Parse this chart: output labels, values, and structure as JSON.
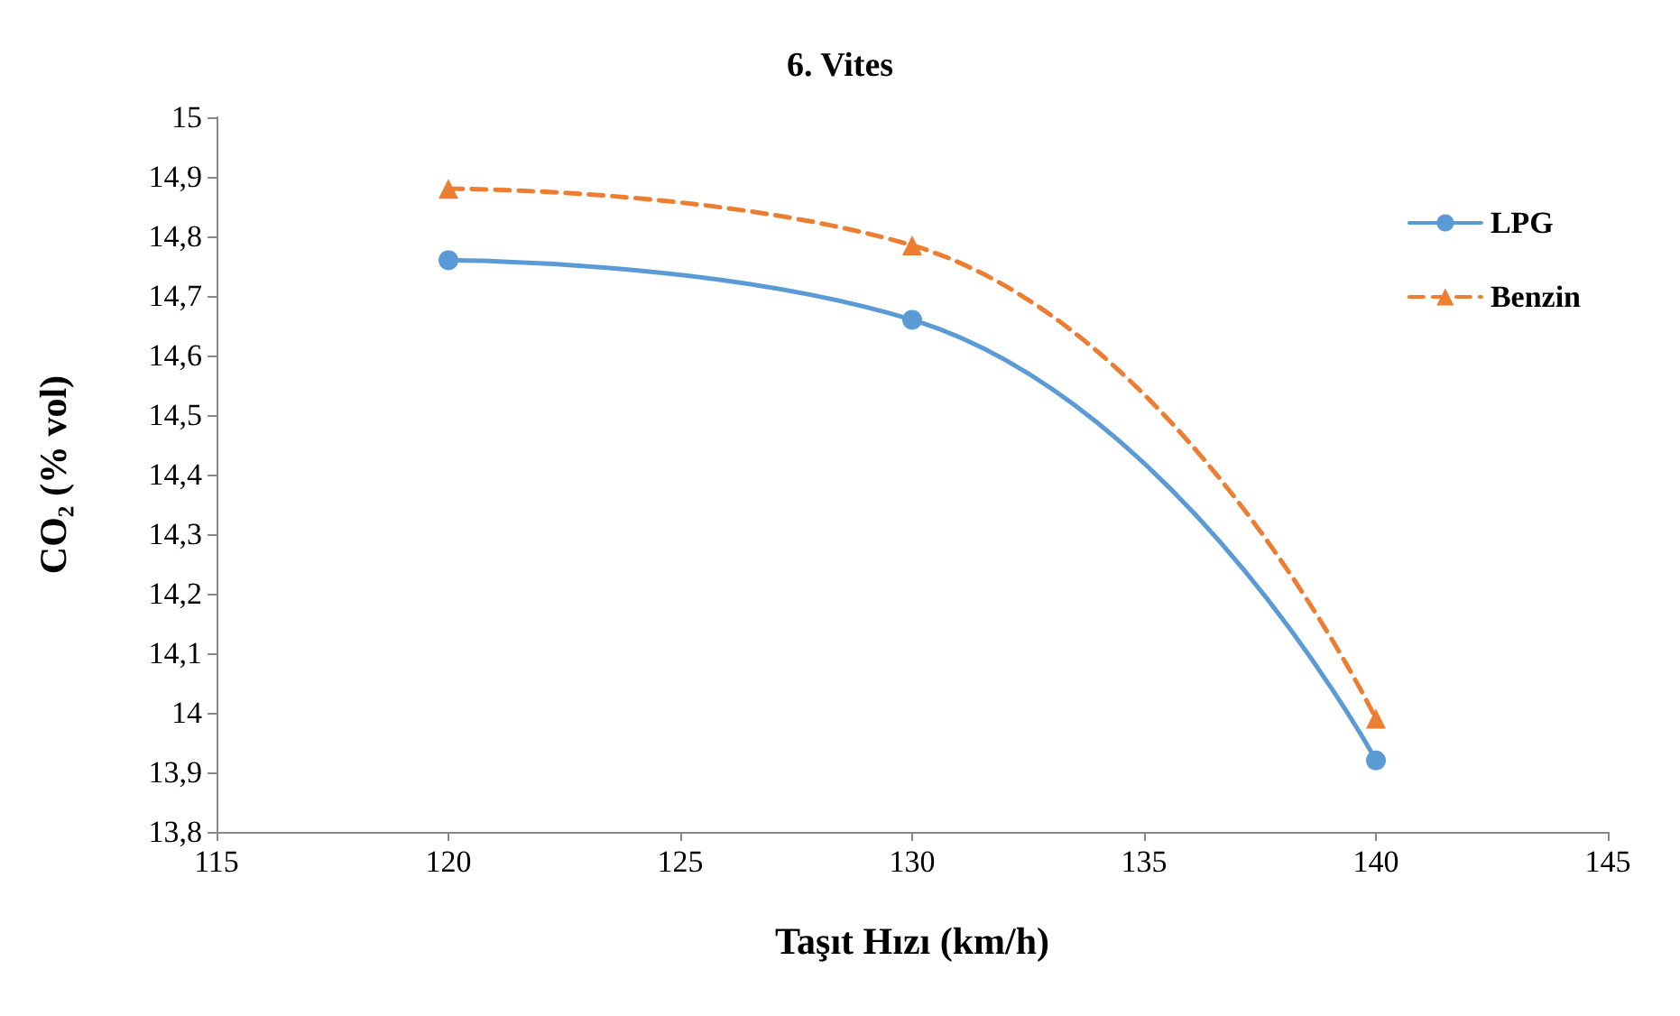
{
  "chart_data": {
    "type": "line",
    "title": "6. Vites",
    "xlabel": "Taşıt Hızı (km/h)",
    "ylabel": "CO₂ (% vol)",
    "x": [
      120,
      130,
      140
    ],
    "series": [
      {
        "name": "LPG",
        "color": "#5b9bd5",
        "values": [
          14.76,
          14.66,
          13.92
        ],
        "marker": "circle",
        "line_style": "solid"
      },
      {
        "name": "Benzin",
        "color": "#ed7d31",
        "values": [
          14.88,
          14.785,
          13.99
        ],
        "marker": "triangle",
        "line_style": "dashed"
      }
    ],
    "xlim": [
      115,
      145
    ],
    "xticks": [
      115,
      120,
      125,
      130,
      135,
      140,
      145
    ],
    "ylim": [
      13.8,
      15
    ],
    "yticks": [
      {
        "value": 13.8,
        "label": "13,8"
      },
      {
        "value": 13.9,
        "label": "13,9"
      },
      {
        "value": 14,
        "label": "14"
      },
      {
        "value": 14.1,
        "label": "14,1"
      },
      {
        "value": 14.2,
        "label": "14,2"
      },
      {
        "value": 14.3,
        "label": "14,3"
      },
      {
        "value": 14.4,
        "label": "14,4"
      },
      {
        "value": 14.5,
        "label": "14,5"
      },
      {
        "value": 14.6,
        "label": "14,6"
      },
      {
        "value": 14.7,
        "label": "14,7"
      },
      {
        "value": 14.8,
        "label": "14,8"
      },
      {
        "value": 14.9,
        "label": "14,9"
      },
      {
        "value": 15,
        "label": "15"
      }
    ],
    "grid": false,
    "legend": "top right"
  }
}
